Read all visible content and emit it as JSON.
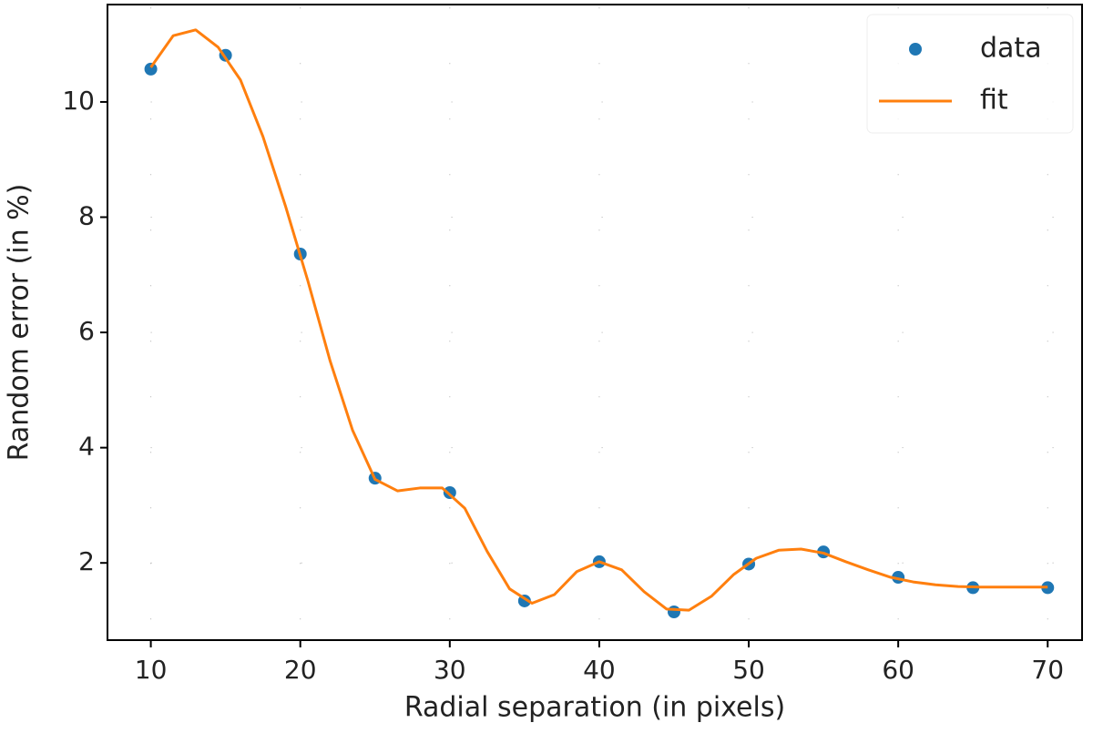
{
  "chart_data": {
    "type": "scatter",
    "xlabel": "Radial separation (in pixels)",
    "ylabel": "Random error (in %)",
    "xlim": [
      7.1,
      72.3
    ],
    "ylim": [
      0.66,
      11.69
    ],
    "xticks": [
      10,
      20,
      30,
      40,
      50,
      60,
      70
    ],
    "yticks": [
      2,
      4,
      6,
      8,
      10
    ],
    "grid": true,
    "legend": "upper right",
    "series": [
      {
        "name": "data",
        "type": "scatter",
        "color": "#1f77b4",
        "x": [
          10,
          15,
          20,
          25,
          30,
          35,
          40,
          45,
          50,
          55,
          60,
          65,
          70
        ],
        "values": [
          10.57,
          10.81,
          7.36,
          3.47,
          3.22,
          1.34,
          2.02,
          1.15,
          1.98,
          2.19,
          1.75,
          1.57,
          1.57
        ]
      },
      {
        "name": "fit",
        "type": "line",
        "color": "#ff7f0e",
        "x": [
          10,
          11.5,
          13,
          14.5,
          16,
          17.5,
          19,
          20.5,
          22,
          23.5,
          25,
          26.5,
          28,
          29.5,
          31,
          32.5,
          34,
          35.5,
          37,
          38.5,
          40,
          41.5,
          43,
          44.5,
          46,
          47.5,
          49,
          50.5,
          52,
          53.5,
          55,
          56.5,
          58,
          59.5,
          61,
          62.5,
          64,
          65.5,
          67,
          68.5,
          70
        ],
        "values": [
          10.6,
          11.15,
          11.25,
          10.95,
          10.38,
          9.4,
          8.2,
          6.9,
          5.5,
          4.3,
          3.45,
          3.25,
          3.3,
          3.3,
          2.95,
          2.2,
          1.55,
          1.3,
          1.45,
          1.85,
          2.02,
          1.88,
          1.5,
          1.2,
          1.18,
          1.42,
          1.8,
          2.08,
          2.22,
          2.24,
          2.17,
          2.02,
          1.88,
          1.75,
          1.67,
          1.62,
          1.59,
          1.58,
          1.58,
          1.58,
          1.58
        ]
      }
    ]
  }
}
